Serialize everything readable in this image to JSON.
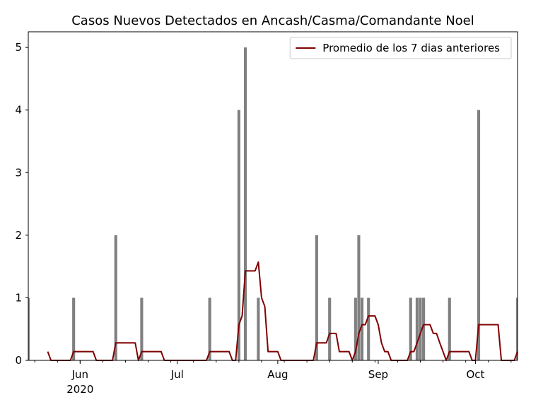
{
  "chart_data": {
    "type": "bar",
    "title": "Casos Nuevos Detectados en Ancash/Casma/Comandante Noel",
    "xlabel": "",
    "ylabel": "",
    "x_start": "2020-05-16",
    "x_end": "2020-10-14",
    "ylim": [
      0,
      5.25
    ],
    "yticks": [
      0,
      1,
      2,
      3,
      4,
      5
    ],
    "xticks": [
      {
        "label": "Jun",
        "date": "2020-06-01",
        "sublabel": "2020"
      },
      {
        "label": "Jul",
        "date": "2020-07-01",
        "sublabel": ""
      },
      {
        "label": "Aug",
        "date": "2020-08-01",
        "sublabel": ""
      },
      {
        "label": "Sep",
        "date": "2020-09-01",
        "sublabel": ""
      },
      {
        "label": "Oct",
        "date": "2020-10-01",
        "sublabel": ""
      }
    ],
    "series": [
      {
        "kind": "bar",
        "color": "#808080",
        "dates": [
          "2020-05-16",
          "2020-05-30",
          "2020-06-12",
          "2020-06-20",
          "2020-07-11",
          "2020-07-20",
          "2020-07-22",
          "2020-07-26",
          "2020-08-13",
          "2020-08-17",
          "2020-08-25",
          "2020-08-26",
          "2020-08-27",
          "2020-08-29",
          "2020-09-11",
          "2020-09-13",
          "2020-09-14",
          "2020-09-15",
          "2020-09-23",
          "2020-10-02",
          "2020-10-14"
        ],
        "values": [
          1,
          1,
          2,
          1,
          1,
          4,
          5,
          1,
          2,
          1,
          1,
          2,
          1,
          1,
          1,
          1,
          1,
          1,
          1,
          4,
          1
        ]
      },
      {
        "kind": "line",
        "name": "Promedio de los 7 dias anteriores",
        "color": "#800000",
        "points": [
          [
            "2020-05-22",
            0.14
          ],
          [
            "2020-05-23",
            0.0
          ],
          [
            "2020-05-29",
            0.0
          ],
          [
            "2020-05-30",
            0.14
          ],
          [
            "2020-06-05",
            0.14
          ],
          [
            "2020-06-06",
            0.0
          ],
          [
            "2020-06-11",
            0.0
          ],
          [
            "2020-06-12",
            0.28
          ],
          [
            "2020-06-18",
            0.28
          ],
          [
            "2020-06-19",
            0.0
          ],
          [
            "2020-06-20",
            0.14
          ],
          [
            "2020-06-26",
            0.14
          ],
          [
            "2020-06-27",
            0.0
          ],
          [
            "2020-07-10",
            0.0
          ],
          [
            "2020-07-11",
            0.14
          ],
          [
            "2020-07-17",
            0.14
          ],
          [
            "2020-07-18",
            0.0
          ],
          [
            "2020-07-19",
            0.0
          ],
          [
            "2020-07-20",
            0.57
          ],
          [
            "2020-07-21",
            0.71
          ],
          [
            "2020-07-22",
            1.43
          ],
          [
            "2020-07-25",
            1.43
          ],
          [
            "2020-07-26",
            1.57
          ],
          [
            "2020-07-27",
            1.0
          ],
          [
            "2020-07-28",
            0.86
          ],
          [
            "2020-07-29",
            0.14
          ],
          [
            "2020-08-01",
            0.14
          ],
          [
            "2020-08-02",
            0.0
          ],
          [
            "2020-08-12",
            0.0
          ],
          [
            "2020-08-13",
            0.28
          ],
          [
            "2020-08-16",
            0.28
          ],
          [
            "2020-08-17",
            0.43
          ],
          [
            "2020-08-19",
            0.43
          ],
          [
            "2020-08-20",
            0.14
          ],
          [
            "2020-08-23",
            0.14
          ],
          [
            "2020-08-24",
            0.0
          ],
          [
            "2020-08-25",
            0.14
          ],
          [
            "2020-08-26",
            0.43
          ],
          [
            "2020-08-27",
            0.57
          ],
          [
            "2020-08-28",
            0.57
          ],
          [
            "2020-08-29",
            0.71
          ],
          [
            "2020-08-31",
            0.71
          ],
          [
            "2020-09-01",
            0.57
          ],
          [
            "2020-09-02",
            0.28
          ],
          [
            "2020-09-03",
            0.14
          ],
          [
            "2020-09-04",
            0.14
          ],
          [
            "2020-09-05",
            0.0
          ],
          [
            "2020-09-10",
            0.0
          ],
          [
            "2020-09-11",
            0.14
          ],
          [
            "2020-09-12",
            0.14
          ],
          [
            "2020-09-13",
            0.28
          ],
          [
            "2020-09-14",
            0.43
          ],
          [
            "2020-09-15",
            0.57
          ],
          [
            "2020-09-17",
            0.57
          ],
          [
            "2020-09-18",
            0.43
          ],
          [
            "2020-09-19",
            0.43
          ],
          [
            "2020-09-20",
            0.28
          ],
          [
            "2020-09-21",
            0.14
          ],
          [
            "2020-09-22",
            0.0
          ],
          [
            "2020-09-23",
            0.14
          ],
          [
            "2020-09-29",
            0.14
          ],
          [
            "2020-09-30",
            0.0
          ],
          [
            "2020-10-01",
            0.0
          ],
          [
            "2020-10-02",
            0.57
          ],
          [
            "2020-10-08",
            0.57
          ],
          [
            "2020-10-09",
            0.0
          ],
          [
            "2020-10-13",
            0.0
          ],
          [
            "2020-10-14",
            0.14
          ]
        ]
      }
    ],
    "legend": {
      "position": "top-right"
    },
    "grid": false
  }
}
